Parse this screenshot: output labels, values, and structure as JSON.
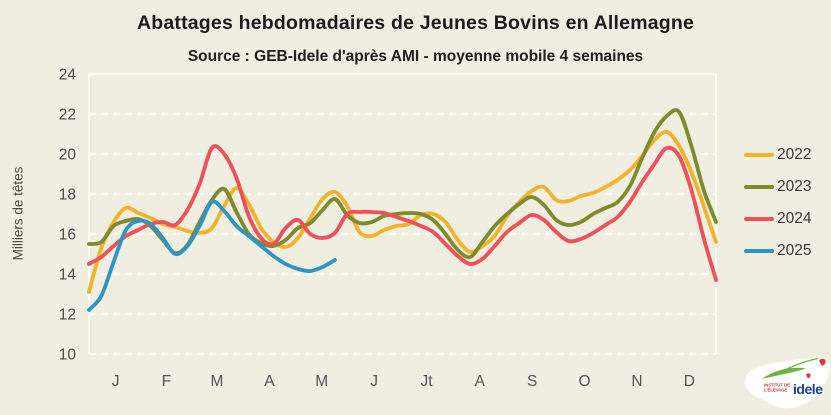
{
  "header": {
    "title": "Abattages hebdomadaires de Jeunes Bovins en Allemagne",
    "subtitle": "Source : GEB-Idele d'après AMI - moyenne mobile 4 semaines"
  },
  "chart_data": {
    "type": "line",
    "title": "Abattages hebdomadaires de Jeunes Bovins en Allemagne",
    "subtitle": "Source : GEB-Idele d'après AMI - moyenne mobile 4 semaines",
    "xlabel": "",
    "ylabel": "Milliers de têtes",
    "ylim": [
      10,
      24
    ],
    "yticks": [
      24,
      22,
      20,
      18,
      16,
      14,
      12,
      10
    ],
    "x_unit": "week-of-year (1-52), moyenne mobile 4 semaines",
    "month_labels": [
      "J",
      "F",
      "M",
      "A",
      "M",
      "J",
      "Jt",
      "A",
      "S",
      "O",
      "N",
      "D"
    ],
    "grid": "horizontal-dashed-white",
    "legend_position": "right",
    "background_color": "#efeee1",
    "gridline_color": "#ffffff",
    "series": [
      {
        "name": "2022",
        "color": "#f2b32c",
        "values": [
          13.1,
          15.3,
          16.6,
          17.3,
          17.05,
          16.8,
          16.5,
          16.35,
          16.15,
          16.05,
          16.3,
          17.4,
          18.3,
          17.5,
          16.3,
          15.6,
          15.35,
          15.8,
          16.8,
          17.75,
          18.1,
          17.4,
          16.1,
          15.9,
          16.2,
          16.4,
          16.5,
          16.95,
          17.0,
          16.6,
          15.7,
          15.1,
          15.4,
          15.9,
          16.9,
          17.6,
          18.15,
          18.35,
          17.7,
          17.65,
          17.9,
          18.05,
          18.35,
          18.7,
          19.2,
          19.9,
          20.7,
          21.1,
          20.4,
          19.1,
          17.4,
          15.6
        ]
      },
      {
        "name": "2023",
        "color": "#7c8b2b",
        "values": [
          15.5,
          15.6,
          16.4,
          16.65,
          16.75,
          16.4,
          15.7,
          15.05,
          15.45,
          16.6,
          17.7,
          18.25,
          17.1,
          16.0,
          15.55,
          15.4,
          15.7,
          16.3,
          16.55,
          17.2,
          17.75,
          16.95,
          16.55,
          16.6,
          16.9,
          17.0,
          17.05,
          17.0,
          16.7,
          16.0,
          15.2,
          14.85,
          15.6,
          16.4,
          17.0,
          17.5,
          17.85,
          17.45,
          16.7,
          16.45,
          16.6,
          17.0,
          17.3,
          17.6,
          18.4,
          19.8,
          21.1,
          21.9,
          22.1,
          20.4,
          18.2,
          16.6
        ]
      },
      {
        "name": "2024",
        "color": "#f25059",
        "values": [
          14.5,
          14.85,
          15.4,
          15.9,
          16.2,
          16.5,
          16.6,
          16.45,
          17.2,
          18.5,
          20.3,
          20.0,
          18.8,
          16.9,
          15.8,
          15.5,
          16.3,
          16.7,
          16.0,
          15.8,
          16.05,
          17.0,
          17.1,
          17.1,
          17.05,
          16.85,
          16.65,
          16.4,
          16.1,
          15.5,
          14.9,
          14.5,
          14.75,
          15.4,
          16.1,
          16.55,
          16.95,
          16.7,
          16.1,
          15.65,
          15.75,
          16.05,
          16.45,
          16.85,
          17.6,
          18.6,
          19.5,
          20.3,
          19.9,
          18.2,
          15.8,
          13.7
        ]
      },
      {
        "name": "2025",
        "color": "#2d94c6",
        "values": [
          12.2,
          12.9,
          14.6,
          16.2,
          16.65,
          16.5,
          15.8,
          15.0,
          15.4,
          16.4,
          17.6,
          17.15,
          16.4,
          15.9,
          15.4,
          14.9,
          14.5,
          14.25,
          14.15,
          14.35,
          14.7
        ]
      }
    ]
  },
  "logo": {
    "brand": "idele",
    "institute_line1": "INSTITUT DE",
    "institute_line2": "L'ÉLEVAGE"
  }
}
